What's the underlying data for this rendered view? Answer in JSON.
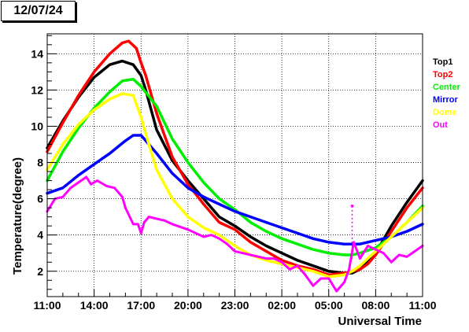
{
  "header": {
    "date": "12/07/24"
  },
  "chart_data": {
    "type": "line",
    "title": "",
    "xlabel": "Universal Time",
    "ylabel": "Temperature(degree)",
    "x_tick_labels": [
      "11:00",
      "14:00",
      "17:00",
      "20:00",
      "23:00",
      "02:00",
      "05:00",
      "08:00",
      "11:00"
    ],
    "y_tick_labels": [
      "2",
      "4",
      "6",
      "8",
      "10",
      "12",
      "14"
    ],
    "xlim_hours": [
      0,
      24
    ],
    "ylim": [
      0.6,
      15.1
    ],
    "grid": true,
    "legend_position": "right",
    "series": [
      {
        "name": "Top1",
        "color": "#000000",
        "x": [
          0,
          1,
          2,
          3,
          4,
          4.8,
          5.5,
          6,
          6.3,
          7,
          8,
          9,
          10,
          11,
          12,
          13,
          14,
          15,
          16,
          17,
          18,
          19,
          19.5,
          20,
          20.5,
          21,
          22,
          23,
          24
        ],
        "y": [
          8.8,
          10.3,
          11.6,
          12.7,
          13.4,
          13.6,
          13.4,
          12.8,
          12.0,
          9.8,
          8.1,
          7.0,
          6.0,
          5.0,
          4.5,
          3.9,
          3.4,
          3.0,
          2.6,
          2.3,
          2.0,
          1.9,
          1.9,
          2.1,
          2.5,
          3.0,
          4.5,
          5.8,
          7.0
        ]
      },
      {
        "name": "Top2",
        "color": "#ff0000",
        "x": [
          0,
          1,
          2,
          3,
          4,
          4.8,
          5.2,
          5.7,
          6,
          6.3,
          7,
          8,
          9,
          10,
          11,
          12,
          13,
          14,
          15,
          16,
          17,
          18,
          19,
          19.5,
          20,
          20.5,
          21,
          22,
          23,
          24
        ],
        "y": [
          8.6,
          10.2,
          11.7,
          13.0,
          14.0,
          14.6,
          14.7,
          14.3,
          13.5,
          12.8,
          10.7,
          8.3,
          6.8,
          5.7,
          4.7,
          4.3,
          3.6,
          3.1,
          2.6,
          2.3,
          2.1,
          1.8,
          1.9,
          2.0,
          2.1,
          2.4,
          2.9,
          4.2,
          5.5,
          6.6
        ]
      },
      {
        "name": "Center",
        "color": "#00ee00",
        "x": [
          0,
          1,
          2,
          3,
          4,
          4.8,
          5.5,
          6,
          7,
          8,
          9,
          10,
          11,
          12,
          13,
          14,
          15,
          16,
          17,
          18,
          19,
          19.5,
          20,
          21,
          22,
          23,
          24
        ],
        "y": [
          7.0,
          8.6,
          9.9,
          11.0,
          11.9,
          12.5,
          12.6,
          12.2,
          11.1,
          9.3,
          8.0,
          6.9,
          6.0,
          5.4,
          4.7,
          4.2,
          3.8,
          3.5,
          3.2,
          3.0,
          2.9,
          2.9,
          3.0,
          3.3,
          3.9,
          4.7,
          5.6
        ]
      },
      {
        "name": "Mirror",
        "color": "#0000ff",
        "x": [
          0,
          1,
          2,
          3,
          4,
          5,
          5.5,
          6,
          7,
          8,
          9,
          10,
          11,
          12,
          13,
          14,
          15,
          16,
          17,
          18,
          19,
          19.5,
          20,
          21,
          22,
          23,
          24
        ],
        "y": [
          6.3,
          6.6,
          7.3,
          7.9,
          8.5,
          9.2,
          9.5,
          9.5,
          8.5,
          7.4,
          6.6,
          6.1,
          5.7,
          5.3,
          5.0,
          4.7,
          4.4,
          4.1,
          3.8,
          3.6,
          3.5,
          3.5,
          3.5,
          3.7,
          3.9,
          4.2,
          4.6
        ]
      },
      {
        "name": "Dome",
        "color": "#ffff00",
        "x": [
          0,
          1,
          2,
          3,
          4,
          4.8,
          5.5,
          6,
          6.5,
          7,
          8,
          9,
          10,
          11,
          12,
          13,
          14,
          15,
          16,
          17,
          18,
          19,
          19.5,
          20,
          20.5,
          21,
          22,
          23,
          24
        ],
        "y": [
          7.6,
          9.0,
          10.1,
          10.9,
          11.5,
          11.8,
          11.7,
          10.5,
          9.0,
          7.6,
          6.0,
          5.0,
          4.4,
          4.0,
          3.4,
          2.9,
          2.6,
          2.4,
          2.2,
          2.0,
          1.7,
          1.8,
          2.0,
          2.3,
          2.7,
          3.1,
          3.9,
          4.7,
          5.5
        ]
      },
      {
        "name": "Out",
        "color": "#ff00ff",
        "x": [
          0,
          0.5,
          1,
          1.5,
          2,
          2.5,
          2.8,
          3.2,
          3.8,
          4.3,
          4.8,
          5,
          5.5,
          5.8,
          6,
          6.2,
          6.5,
          7,
          7.5,
          8,
          9,
          10,
          10.5,
          11,
          11.5,
          12,
          12.5,
          13,
          14,
          14.5,
          15,
          15.5,
          16,
          16.5,
          17,
          17.5,
          18,
          18.5,
          19,
          19.3,
          19.6,
          20,
          20.5,
          21,
          21.5,
          22,
          22.5,
          23,
          23.5,
          24
        ],
        "y": [
          5.3,
          6.0,
          6.1,
          6.6,
          6.9,
          7.2,
          6.8,
          7.0,
          6.7,
          6.6,
          6.1,
          5.5,
          4.6,
          4.6,
          4.1,
          4.7,
          5.0,
          4.9,
          4.8,
          4.6,
          4.3,
          3.9,
          4.0,
          3.8,
          3.5,
          3.1,
          3.0,
          2.9,
          2.7,
          2.7,
          2.5,
          2.1,
          2.3,
          1.8,
          1.2,
          1.6,
          1.6,
          0.9,
          1.4,
          2.1,
          3.6,
          2.7,
          3.4,
          3.2,
          3.0,
          2.5,
          2.9,
          2.8,
          3.1,
          3.4
        ]
      }
    ],
    "annotations": [
      {
        "series": "Out",
        "x": 19.5,
        "y": 5.6,
        "kind": "spike"
      }
    ]
  }
}
